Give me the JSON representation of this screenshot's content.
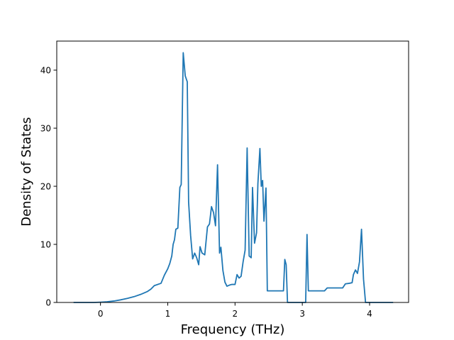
{
  "chart_data": {
    "type": "line",
    "title": "",
    "xlabel": "Frequency (THz)",
    "ylabel": "Density of States",
    "xlim": [
      -0.65,
      4.58
    ],
    "ylim": [
      0,
      45
    ],
    "x_ticks": [
      0,
      1,
      2,
      3,
      4
    ],
    "x_tick_labels": [
      "0",
      "1",
      "2",
      "3",
      "4"
    ],
    "y_ticks": [
      0,
      10,
      20,
      30,
      40
    ],
    "y_tick_labels": [
      "0",
      "10",
      "20",
      "30",
      "40"
    ],
    "grid": false,
    "legend": "none",
    "line_color": "#1f77b4",
    "series": [
      {
        "x": [
          -0.4,
          -0.1,
          0.0,
          0.1,
          0.2,
          0.3,
          0.4,
          0.5,
          0.6,
          0.7,
          0.75,
          0.8,
          0.9,
          0.95,
          1.0,
          1.03,
          1.06,
          1.08,
          1.1,
          1.12,
          1.15,
          1.18,
          1.2,
          1.23,
          1.26,
          1.29,
          1.31,
          1.34,
          1.37,
          1.4,
          1.43,
          1.46,
          1.48,
          1.51,
          1.55,
          1.59,
          1.62,
          1.65,
          1.68,
          1.71,
          1.74,
          1.77,
          1.79,
          1.82,
          1.85,
          1.88,
          1.92,
          1.95,
          2.0,
          2.03,
          2.06,
          2.09,
          2.12,
          2.15,
          2.18,
          2.21,
          2.24,
          2.26,
          2.29,
          2.32,
          2.34,
          2.37,
          2.39,
          2.41,
          2.43,
          2.46,
          2.48,
          2.51,
          2.55,
          2.62,
          2.72,
          2.74,
          2.76,
          2.78,
          2.8,
          3.05,
          3.07,
          3.09,
          3.12,
          3.2,
          3.33,
          3.37,
          3.5,
          3.6,
          3.64,
          3.7,
          3.74,
          3.76,
          3.79,
          3.82,
          3.85,
          3.88,
          3.91,
          3.94,
          3.96,
          4.0,
          4.1,
          4.35
        ],
        "y": [
          0.0,
          0.0,
          0.05,
          0.12,
          0.25,
          0.45,
          0.7,
          1.0,
          1.4,
          1.9,
          2.3,
          2.9,
          3.3,
          4.7,
          5.8,
          6.7,
          8.0,
          10.0,
          10.8,
          12.6,
          12.8,
          19.8,
          20.3,
          43.0,
          39.0,
          38.0,
          17.3,
          11.5,
          7.5,
          8.5,
          7.7,
          6.5,
          9.6,
          8.5,
          8.2,
          13.0,
          13.5,
          16.5,
          15.5,
          13.2,
          23.7,
          8.5,
          9.5,
          5.5,
          3.5,
          2.8,
          3.0,
          3.1,
          3.1,
          4.8,
          4.2,
          4.5,
          7.0,
          9.0,
          26.6,
          8.0,
          7.7,
          19.8,
          10.2,
          12.0,
          20.5,
          26.5,
          20.0,
          21.0,
          14.0,
          19.7,
          2.0,
          2.0,
          2.0,
          2.0,
          2.0,
          7.4,
          6.5,
          0.0,
          0.0,
          0.0,
          11.7,
          2.0,
          2.0,
          2.0,
          2.0,
          2.5,
          2.5,
          2.5,
          3.2,
          3.3,
          3.4,
          4.8,
          5.6,
          5.0,
          7.0,
          12.6,
          4.0,
          0.0,
          0.0,
          0.0,
          0.0,
          0.0
        ]
      }
    ]
  }
}
